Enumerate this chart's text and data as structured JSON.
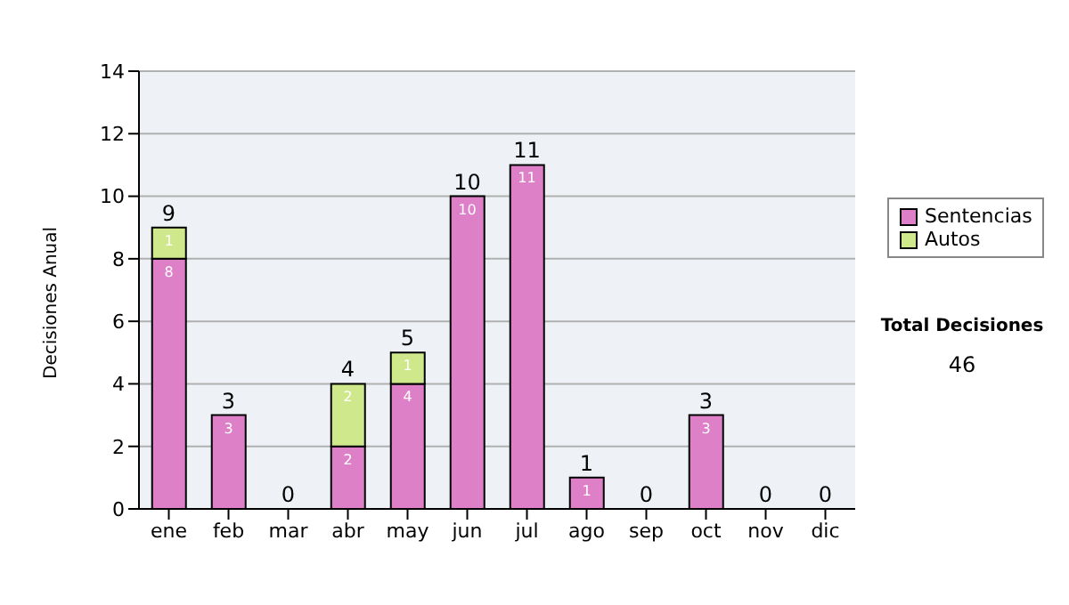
{
  "chart_data": {
    "type": "bar",
    "ylabel": "Decisiones Anual",
    "categories": [
      "ene",
      "feb",
      "mar",
      "abr",
      "may",
      "jun",
      "jul",
      "ago",
      "sep",
      "oct",
      "nov",
      "dic"
    ],
    "series": [
      {
        "name": "Sentencias",
        "color": "#dd80c8",
        "values": [
          8,
          3,
          0,
          2,
          4,
          10,
          11,
          1,
          0,
          3,
          0,
          0
        ],
        "value_labels": [
          "8",
          "3",
          null,
          "2",
          "4",
          "10",
          "11",
          "1",
          null,
          "3",
          null,
          null
        ]
      },
      {
        "name": "Autos",
        "color": "#cfe88c",
        "values": [
          1,
          0,
          0,
          2,
          1,
          0,
          0,
          0,
          0,
          0,
          0,
          0
        ],
        "value_labels": [
          "1",
          null,
          null,
          "2",
          "1",
          null,
          null,
          null,
          null,
          null,
          null,
          null
        ]
      }
    ],
    "stacked": true,
    "totals": [
      "9",
      "3",
      "0",
      "4",
      "5",
      "10",
      "11",
      "1",
      "0",
      "3",
      "0",
      "0"
    ],
    "ylim": [
      0,
      14
    ],
    "yticks": [
      0,
      2,
      4,
      6,
      8,
      10,
      12,
      14
    ],
    "grid": "y",
    "legend": "right",
    "annotations": [
      "Total Decisiones",
      "46"
    ]
  }
}
